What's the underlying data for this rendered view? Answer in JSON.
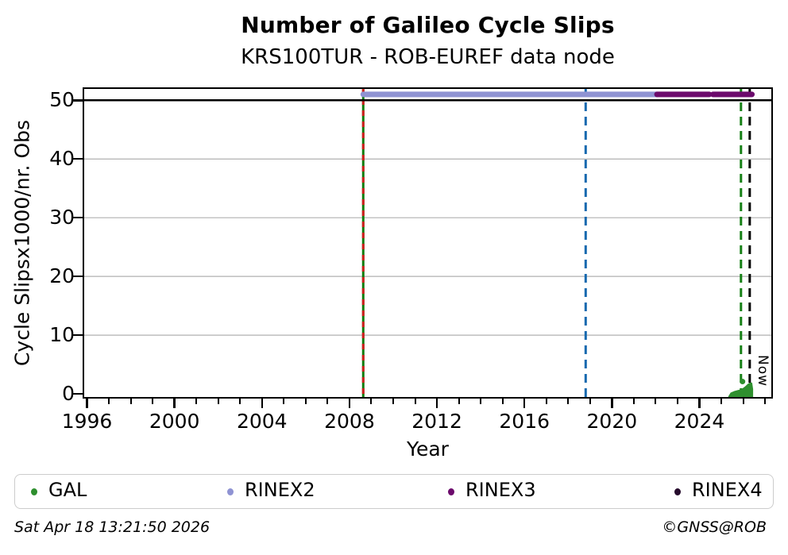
{
  "figure": {
    "footer_left": "Sat Apr 18 13:21:50 2026",
    "footer_right": "©GNSS@ROB"
  },
  "chart_data": {
    "type": "line",
    "title": "Number of Galileo Cycle Slips",
    "subtitle": "KRS100TUR - ROB-EUREF data node",
    "xlabel": "Year",
    "ylabel": "Cycle Slipsx1000/nr. Obs",
    "xlim": [
      1995.8,
      2027.36
    ],
    "ylim": [
      -0.8,
      52.2
    ],
    "x_major_ticks": [
      1996,
      2000,
      2004,
      2008,
      2012,
      2016,
      2020,
      2024
    ],
    "x_minor_tick_step": 1,
    "y_ticks": [
      0,
      10,
      20,
      30,
      40,
      50
    ],
    "grid": {
      "y_values": [
        10,
        20,
        30,
        40
      ],
      "color": "#b0b0b0"
    },
    "threshold_line": {
      "y": 50,
      "color": "#000000",
      "width": 2.5
    },
    "series": [
      {
        "name": "RINEX2",
        "color": "#8f93d3",
        "value": 51,
        "line_width": 7,
        "segments": [
          [
            2008.63,
            2022.06
          ]
        ]
      },
      {
        "name": "RINEX3",
        "color": "#6c0a6c",
        "value": 51,
        "line_width": 7,
        "segments": [
          [
            2022.06,
            2024.45
          ],
          [
            2024.62,
            2026.4
          ]
        ]
      },
      {
        "name": "RINEX4",
        "color": "#260b2c",
        "value": null,
        "line_width": 7,
        "segments": []
      }
    ],
    "vlines": [
      {
        "name": "receiver-change-line-green",
        "x": 2008.63,
        "style": "solid",
        "color": "#107d10",
        "width": 3,
        "dash": null
      },
      {
        "name": "receiver-change-line-red",
        "x": 2008.63,
        "style": "dashed",
        "color": "#d01e1e",
        "width": 3,
        "dash": "7 7"
      },
      {
        "name": "event-line-blue",
        "x": 2018.8,
        "style": "dashed",
        "color": "#1769af",
        "width": 3,
        "dash": "11 7"
      },
      {
        "name": "last-data-line-green",
        "x": 2025.9,
        "style": "dashed",
        "color": "#168016",
        "width": 3,
        "dash": "11 7"
      },
      {
        "name": "now-line",
        "x": 2026.3,
        "style": "dashed",
        "color": "#000000",
        "width": 3,
        "dash": "11 7",
        "label": "Now"
      }
    ],
    "now_label": "Now",
    "gal_scatter": {
      "name": "GAL",
      "color": "#2e8f2e",
      "blob_polygon": [
        [
          2025.35,
          -0.5
        ],
        [
          2025.45,
          0.1
        ],
        [
          2025.6,
          0.35
        ],
        [
          2025.75,
          0.5
        ],
        [
          2025.9,
          0.65
        ],
        [
          2026.02,
          0.9
        ],
        [
          2026.12,
          1.2
        ],
        [
          2026.22,
          1.55
        ],
        [
          2026.3,
          1.75
        ],
        [
          2026.38,
          1.8
        ],
        [
          2026.42,
          0.8
        ],
        [
          2026.42,
          -0.5
        ]
      ],
      "lone_point": {
        "x": 2025.97,
        "y": 2.1
      }
    },
    "legend": {
      "position": "bottom",
      "items": [
        {
          "label": "GAL",
          "color": "#2e8f2e"
        },
        {
          "label": "RINEX2",
          "color": "#8f93d3"
        },
        {
          "label": "RINEX3",
          "color": "#6c0a6c"
        },
        {
          "label": "RINEX4",
          "color": "#260b2c"
        }
      ]
    }
  }
}
